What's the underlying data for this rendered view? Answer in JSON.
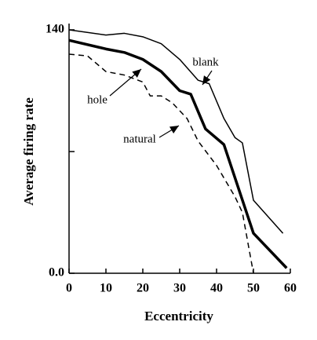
{
  "chart_data": {
    "type": "line",
    "xlabel": "Eccentricity",
    "ylabel": "Average firing rate",
    "xlim": [
      0,
      60
    ],
    "ylim": [
      0,
      140
    ],
    "xticks": [
      0,
      10,
      20,
      30,
      40,
      50,
      60
    ],
    "yticks": [
      {
        "value": 0,
        "label": "0.0"
      },
      {
        "value": 70,
        "label": null
      },
      140
    ],
    "series": [
      {
        "name": "blank",
        "color": "#000000",
        "width": 1.5,
        "dash": "none",
        "x": [
          0,
          10,
          15,
          20,
          25,
          30,
          35,
          38,
          42,
          45,
          47,
          50,
          58
        ],
        "values": [
          140,
          137,
          138,
          136,
          132,
          123,
          111,
          109,
          89,
          78,
          75,
          42,
          23
        ]
      },
      {
        "name": "hole",
        "color": "#000000",
        "width": 3.5,
        "dash": "none",
        "x": [
          0,
          10,
          15,
          20,
          25,
          30,
          33,
          37,
          42,
          50,
          59
        ],
        "values": [
          134,
          129,
          127,
          123,
          116,
          105,
          103,
          83,
          74,
          23,
          3
        ]
      },
      {
        "name": "natural",
        "color": "#000000",
        "width": 1.5,
        "dash": "7 5",
        "x": [
          0,
          5,
          10,
          15,
          20,
          22,
          25,
          28,
          32,
          35,
          40,
          45,
          47,
          50
        ],
        "values": [
          126,
          125,
          116,
          114,
          110,
          102,
          102,
          98,
          89,
          76,
          62,
          44,
          35,
          0
        ]
      }
    ]
  }
}
